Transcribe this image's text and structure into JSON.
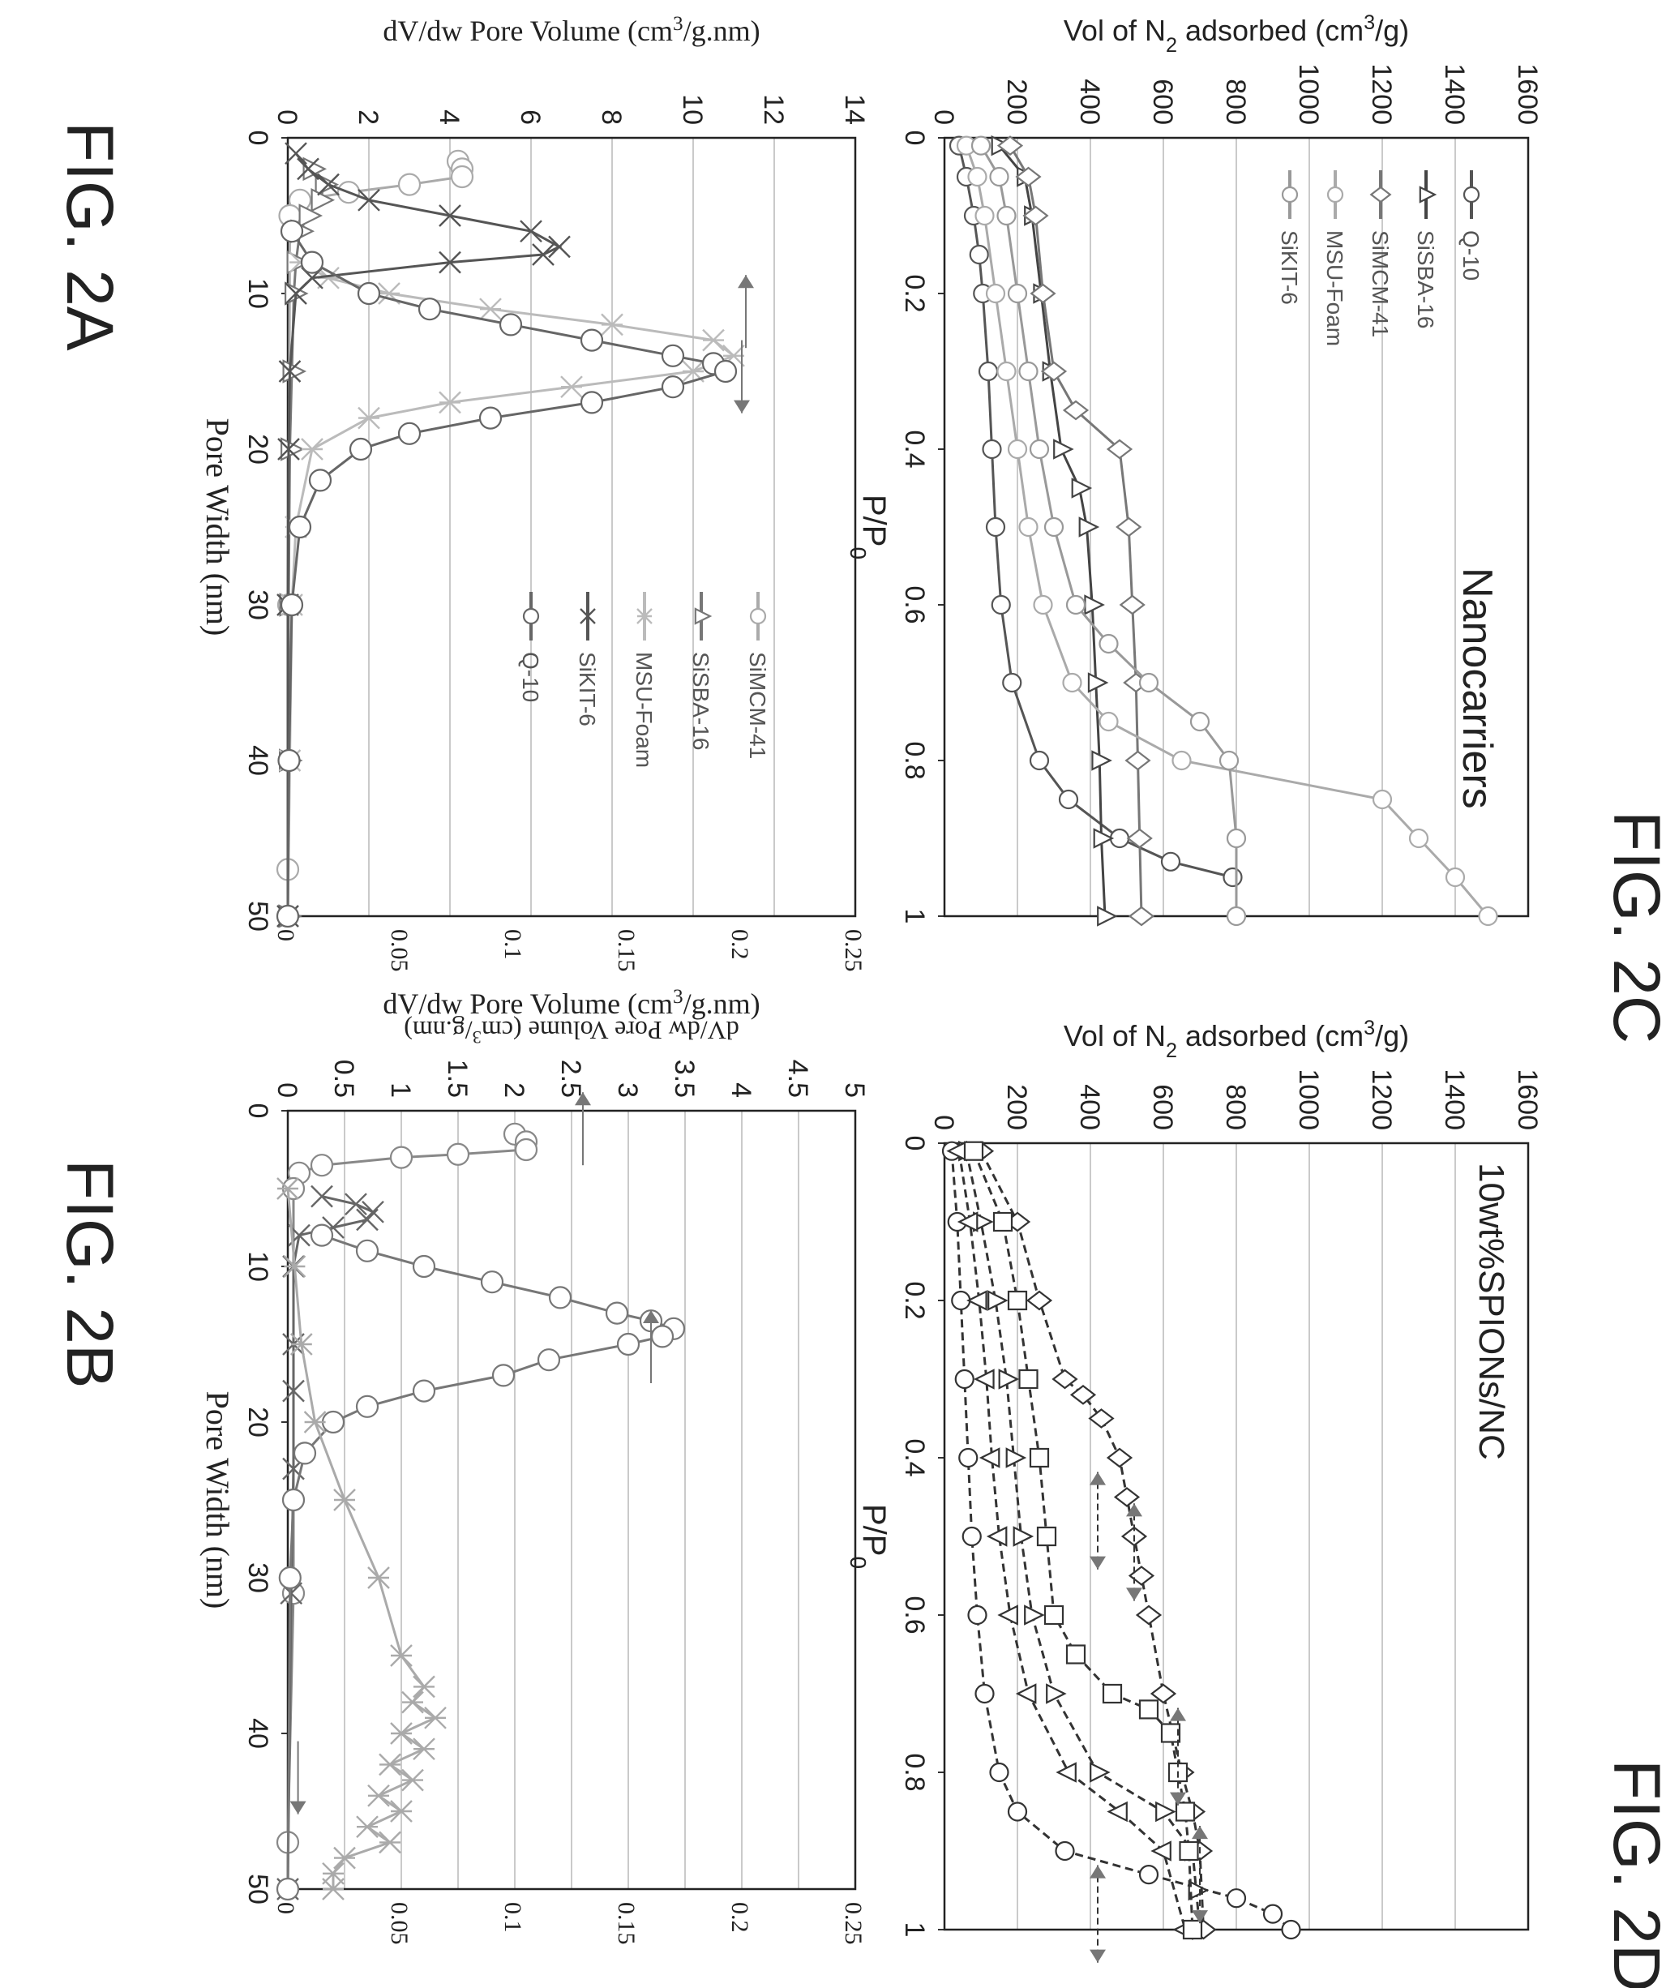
{
  "figures": {
    "fig2a_title": "FIG. 2A",
    "fig2b_title": "FIG. 2B",
    "fig2c_title": "FIG. 2C",
    "fig2d_title": "FIG. 2D"
  },
  "colors": {
    "ink": "#222222",
    "grid": "#b8b8b8",
    "series_light": "#a8a8a8",
    "series_mid": "#808080",
    "series_dark": "#555555"
  },
  "chart_data": [
    {
      "id": "fig2a",
      "type": "line",
      "annotation": "Nanocarriers",
      "xlabel": "P/P0",
      "ylabel": "Vol of N2 adsorbed (cm3/g)",
      "xlim": [
        0,
        1
      ],
      "ylim": [
        0,
        1600
      ],
      "xticks": [
        "0",
        "0.2",
        "0.4",
        "0.6",
        "0.8",
        "1"
      ],
      "yticks": [
        "0",
        "200",
        "400",
        "600",
        "800",
        "1000",
        "1200",
        "1400",
        "1600"
      ],
      "grid": true,
      "legend_position": "top-left",
      "series": [
        {
          "name": "Q-10",
          "marker": "circle",
          "color": "#555555",
          "x": [
            0.01,
            0.05,
            0.1,
            0.15,
            0.2,
            0.3,
            0.4,
            0.5,
            0.6,
            0.7,
            0.8,
            0.85,
            0.9,
            0.93,
            0.95
          ],
          "y": [
            40,
            60,
            80,
            95,
            105,
            120,
            130,
            140,
            155,
            185,
            260,
            340,
            480,
            620,
            790
          ]
        },
        {
          "name": "SiSBA-16",
          "marker": "triangle",
          "color": "#444444",
          "x": [
            0.01,
            0.05,
            0.1,
            0.2,
            0.3,
            0.4,
            0.45,
            0.5,
            0.6,
            0.7,
            0.8,
            0.9,
            1.0
          ],
          "y": [
            150,
            220,
            240,
            265,
            290,
            320,
            370,
            390,
            405,
            415,
            425,
            430,
            440
          ]
        },
        {
          "name": "SiMCM-41",
          "marker": "diamond",
          "color": "#777777",
          "x": [
            0.01,
            0.05,
            0.1,
            0.2,
            0.3,
            0.35,
            0.4,
            0.5,
            0.6,
            0.7,
            0.8,
            0.9,
            1.0
          ],
          "y": [
            180,
            230,
            250,
            270,
            300,
            360,
            480,
            505,
            515,
            525,
            530,
            535,
            540
          ]
        },
        {
          "name": "MSU-Foam",
          "marker": "circle",
          "color": "#aaaaaa",
          "x": [
            0.01,
            0.05,
            0.1,
            0.2,
            0.3,
            0.4,
            0.5,
            0.6,
            0.7,
            0.75,
            0.8,
            0.85,
            0.9,
            0.95,
            1.0
          ],
          "y": [
            60,
            90,
            110,
            140,
            170,
            200,
            230,
            270,
            350,
            450,
            650,
            1200,
            1300,
            1400,
            1490
          ]
        },
        {
          "name": "SiKIT-6",
          "marker": "circle",
          "color": "#999999",
          "x": [
            0.01,
            0.05,
            0.1,
            0.2,
            0.3,
            0.4,
            0.5,
            0.6,
            0.65,
            0.7,
            0.75,
            0.8,
            0.9,
            1.0
          ],
          "y": [
            100,
            150,
            170,
            200,
            230,
            260,
            300,
            360,
            450,
            560,
            700,
            780,
            800,
            800
          ]
        }
      ]
    },
    {
      "id": "fig2b",
      "type": "line",
      "annotation": "10wt%SPIONs/NC",
      "xlabel": "P/P0",
      "ylabel": "Vol of N2 adsorbed (cm3/g)",
      "xlim": [
        0,
        1
      ],
      "ylim": [
        0,
        1600
      ],
      "xticks": [
        "0",
        "0.2",
        "0.4",
        "0.6",
        "0.8",
        "1"
      ],
      "yticks": [
        "0",
        "200",
        "400",
        "600",
        "800",
        "1000",
        "1200",
        "1400",
        "1600"
      ],
      "grid": true,
      "series": [
        {
          "marker": "circle",
          "x": [
            0.01,
            0.1,
            0.2,
            0.3,
            0.4,
            0.5,
            0.6,
            0.7,
            0.8,
            0.85,
            0.9,
            0.93,
            0.96,
            0.98,
            1.0
          ],
          "y": [
            20,
            35,
            45,
            55,
            65,
            75,
            90,
            110,
            150,
            200,
            330,
            560,
            800,
            900,
            950
          ]
        },
        {
          "marker": "triangle",
          "x": [
            0.01,
            0.1,
            0.2,
            0.3,
            0.4,
            0.5,
            0.6,
            0.7,
            0.8,
            0.85,
            0.9,
            0.95,
            1.0
          ],
          "y": [
            60,
            100,
            140,
            170,
            190,
            210,
            240,
            300,
            420,
            600,
            680,
            690,
            700
          ]
        },
        {
          "marker": "triangle-down",
          "x": [
            0.01,
            0.1,
            0.2,
            0.3,
            0.4,
            0.5,
            0.6,
            0.7,
            0.8,
            0.85,
            0.9,
            1.0
          ],
          "y": [
            40,
            70,
            95,
            115,
            130,
            150,
            180,
            230,
            340,
            480,
            600,
            660
          ]
        },
        {
          "marker": "diamond",
          "x": [
            0.01,
            0.1,
            0.2,
            0.3,
            0.32,
            0.35,
            0.4,
            0.45,
            0.5,
            0.55,
            0.6,
            0.7,
            0.8,
            0.85,
            0.9,
            1.0
          ],
          "y": [
            100,
            200,
            260,
            330,
            380,
            430,
            480,
            500,
            520,
            540,
            560,
            600,
            650,
            680,
            700,
            710
          ]
        },
        {
          "marker": "square",
          "x": [
            0.01,
            0.1,
            0.2,
            0.3,
            0.4,
            0.5,
            0.6,
            0.65,
            0.7,
            0.72,
            0.75,
            0.8,
            0.85,
            0.9,
            1.0
          ],
          "y": [
            80,
            160,
            200,
            230,
            260,
            280,
            300,
            360,
            460,
            560,
            620,
            640,
            660,
            670,
            680
          ]
        }
      ],
      "arrows": "double-headed dashed arrows marking hysteresis loops"
    },
    {
      "id": "fig2c",
      "type": "line",
      "xlabel": "Pore Width (nm)",
      "ylabel": "dV/dw Pore Volume (cm3/g.nm)",
      "y2label": "dV/dw Pore Volume (cm3/g.nm)",
      "xlim": [
        0,
        50
      ],
      "ylim": [
        0,
        14
      ],
      "y2lim": [
        0,
        0.25
      ],
      "xticks": [
        "0",
        "10",
        "20",
        "30",
        "40",
        "50"
      ],
      "yticks": [
        "0",
        "2",
        "4",
        "6",
        "8",
        "10",
        "12",
        "14"
      ],
      "y2ticks": [
        "0",
        "0.05",
        "0.1",
        "0.15",
        "0.2",
        "0.25"
      ],
      "grid": true,
      "legend_position": "upper-right",
      "series": [
        {
          "name": "SiMCM-41",
          "marker": "circle",
          "color": "#aaaaaa",
          "x": [
            1.5,
            2.0,
            2.5,
            3.0,
            3.5,
            4.0,
            5.0,
            30.0,
            47.0
          ],
          "y": [
            4.2,
            4.3,
            4.3,
            3.0,
            1.5,
            0.3,
            0.05,
            0.02,
            0.0
          ]
        },
        {
          "name": "SiSBA-16",
          "marker": "triangle",
          "color": "#777777",
          "x": [
            2,
            3,
            4,
            5,
            6,
            8,
            10,
            15,
            20,
            30,
            40,
            50
          ],
          "y": [
            0.6,
            0.9,
            0.8,
            0.5,
            0.3,
            0.2,
            0.15,
            0.1,
            0.05,
            0.02,
            0.01,
            0.0
          ]
        },
        {
          "name": "MSU-Foam",
          "marker": "star",
          "color": "#bbbbbb",
          "x": [
            8,
            9,
            10,
            11,
            12,
            13,
            14,
            15,
            16,
            17,
            18,
            20,
            25,
            30,
            40,
            50
          ],
          "y": [
            0.3,
            1.0,
            2.5,
            5.0,
            8.0,
            10.5,
            11.0,
            10.0,
            7.0,
            4.0,
            2.0,
            0.6,
            0.2,
            0.1,
            0.05,
            0.0
          ]
        },
        {
          "name": "SiKIT-6",
          "marker": "x",
          "color": "#555555",
          "x": [
            1,
            2,
            3,
            4,
            5,
            6,
            7,
            7.5,
            8,
            9,
            10,
            15,
            20,
            30,
            50
          ],
          "y": [
            0.2,
            0.5,
            1.0,
            2.0,
            4.0,
            6.0,
            6.7,
            6.3,
            4.0,
            0.6,
            0.2,
            0.05,
            0.02,
            0.0,
            0.0
          ]
        },
        {
          "name": "Q-10",
          "marker": "circle",
          "color": "#666666",
          "x": [
            6,
            8,
            10,
            11,
            12,
            13,
            14,
            14.5,
            15,
            16,
            17,
            18,
            19,
            20,
            22,
            25,
            30,
            40,
            50
          ],
          "y": [
            0.1,
            0.6,
            2.0,
            3.5,
            5.5,
            7.5,
            9.5,
            10.5,
            10.8,
            9.5,
            7.5,
            5.0,
            3.0,
            1.8,
            0.8,
            0.3,
            0.1,
            0.03,
            0.0
          ]
        }
      ],
      "axis_indicators": [
        {
          "target_axis": "left",
          "anchor_x": 13.5,
          "anchor_y": 11.3
        },
        {
          "target_axis": "right",
          "anchor_x": 13.0,
          "anchor_y": 11.2
        }
      ]
    },
    {
      "id": "fig2d",
      "type": "line",
      "xlabel": "Pore Width (nm)",
      "ylabel": "dV/dw Pore Volume (cm3/g.nm)",
      "y2label": "dV/dw Pore Volume (cm3/g.nm)",
      "xlim": [
        0,
        50
      ],
      "ylim": [
        0,
        5
      ],
      "y2lim": [
        0,
        0.25
      ],
      "xticks": [
        "0",
        "10",
        "20",
        "30",
        "40",
        "50"
      ],
      "yticks": [
        "0",
        "0.5",
        "1",
        "1.5",
        "2",
        "2.5",
        "3",
        "3.5",
        "4",
        "4.5",
        "5"
      ],
      "y2ticks": [
        "0",
        "0.05",
        "0.1",
        "0.15",
        "0.2",
        "0.25"
      ],
      "grid": true,
      "series": [
        {
          "marker": "circle",
          "color": "#888888",
          "x": [
            1.5,
            2.0,
            2.5,
            2.8,
            3.0,
            3.5,
            4.0,
            5.0,
            31.0,
            47.0
          ],
          "y": [
            2.0,
            2.1,
            2.1,
            1.5,
            1.0,
            0.3,
            0.1,
            0.05,
            0.05,
            0.0
          ]
        },
        {
          "marker": "x",
          "color": "#666666",
          "x": [
            5.5,
            6.0,
            6.5,
            7.0,
            7.5,
            8.0,
            10.0,
            15.0,
            18.0,
            23.0,
            31.0,
            50.0
          ],
          "y": [
            0.3,
            0.6,
            0.75,
            0.7,
            0.4,
            0.1,
            0.05,
            0.05,
            0.05,
            0.05,
            0.03,
            0.0
          ]
        },
        {
          "marker": "circle",
          "color": "#777777",
          "x": [
            8,
            9,
            10,
            11,
            12,
            13,
            13.5,
            14,
            14.5,
            15,
            16,
            17,
            18,
            19,
            20,
            22,
            25,
            30,
            50
          ],
          "y": [
            0.3,
            0.7,
            1.2,
            1.8,
            2.4,
            2.9,
            3.2,
            3.4,
            3.3,
            3.0,
            2.3,
            1.9,
            1.2,
            0.7,
            0.4,
            0.15,
            0.05,
            0.02,
            0.0
          ]
        },
        {
          "marker": "star",
          "color": "#aaaaaa",
          "axis": "right",
          "x": [
            5,
            10,
            15,
            20,
            25,
            30,
            35,
            37,
            38,
            39,
            40,
            41,
            42,
            43,
            44,
            45,
            46,
            47,
            48,
            49,
            50
          ],
          "y": [
            0.0,
            0.003,
            0.006,
            0.012,
            0.025,
            0.04,
            0.05,
            0.06,
            0.055,
            0.065,
            0.05,
            0.06,
            0.045,
            0.055,
            0.04,
            0.05,
            0.035,
            0.045,
            0.025,
            0.02,
            0.02
          ]
        }
      ],
      "axis_indicators": [
        {
          "target_axis": "left",
          "anchor_x": 3.5,
          "anchor_y": 2.6
        },
        {
          "target_axis": "left",
          "anchor_x": 17.5,
          "anchor_y": 3.2
        },
        {
          "target_axis": "right",
          "anchor_x": 40.5,
          "anchor_y": 0.09
        }
      ]
    }
  ]
}
